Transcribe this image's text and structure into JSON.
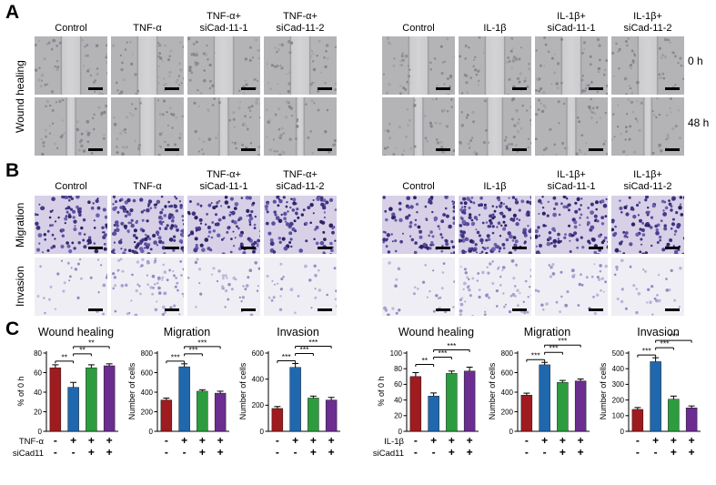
{
  "panels": {
    "A": {
      "letter": "A",
      "side_label": "Wound healing",
      "time_labels": [
        "0 h",
        "48 h"
      ],
      "groups": [
        {
          "columns": [
            [
              "Control"
            ],
            [
              "TNF-α"
            ],
            [
              "TNF-α+",
              "siCad-11-1"
            ],
            [
              "TNF-α+",
              "siCad-11-2"
            ]
          ]
        },
        {
          "columns": [
            [
              "Control"
            ],
            [
              "IL-1β"
            ],
            [
              "IL-1β+",
              "siCad-11-1"
            ],
            [
              "IL-1β+",
              "siCad-11-2"
            ]
          ]
        }
      ]
    },
    "B": {
      "letter": "B",
      "row_labels": [
        "Migration",
        "Invasion"
      ],
      "groups": [
        {
          "columns": [
            [
              "Control"
            ],
            [
              "TNF-α"
            ],
            [
              "TNF-α+",
              "siCad-11-1"
            ],
            [
              "TNF-α+",
              "siCad-11-2"
            ]
          ]
        },
        {
          "columns": [
            [
              "Control"
            ],
            [
              "IL-1β"
            ],
            [
              "IL-1β+",
              "siCad-11-1"
            ],
            [
              "IL-1β+",
              "siCad-11-2"
            ]
          ]
        }
      ]
    },
    "C": {
      "letter": "C"
    }
  },
  "colors": {
    "bars": [
      "#9e1b1f",
      "#2068ae",
      "#2c9c3f",
      "#6b2d90"
    ]
  },
  "chart_data": [
    {
      "type": "bar",
      "title": "Wound healing",
      "ylabel": "% of 0 h",
      "ylim": [
        0,
        80
      ],
      "yticks": [
        0,
        20,
        40,
        60,
        80
      ],
      "values": [
        65,
        45,
        65,
        67
      ],
      "errors": [
        3,
        5,
        3,
        2
      ],
      "significance": [
        {
          "label": "**",
          "from": 0,
          "to": 1
        },
        {
          "label": "**",
          "from": 1,
          "to": 2
        },
        {
          "label": "**",
          "from": 1,
          "to": 3
        }
      ],
      "xrows": [
        {
          "label": "TNF-α",
          "signs": [
            "-",
            "+",
            "+",
            "+"
          ]
        },
        {
          "label": "siCad11",
          "signs": [
            "-",
            "-",
            "+",
            "+"
          ]
        }
      ]
    },
    {
      "type": "bar",
      "title": "Migration",
      "ylabel": "Number of cells",
      "ylim": [
        0,
        800
      ],
      "yticks": [
        0,
        200,
        400,
        600,
        800
      ],
      "values": [
        320,
        660,
        410,
        390
      ],
      "errors": [
        20,
        30,
        15,
        20
      ],
      "significance": [
        {
          "label": "***",
          "from": 0,
          "to": 1
        },
        {
          "label": "***",
          "from": 1,
          "to": 2
        },
        {
          "label": "***",
          "from": 1,
          "to": 3
        }
      ],
      "xrows": [
        {
          "label": "",
          "signs": [
            "-",
            "+",
            "+",
            "+"
          ]
        },
        {
          "label": "",
          "signs": [
            "-",
            "-",
            "+",
            "+"
          ]
        }
      ]
    },
    {
      "type": "bar",
      "title": "Invasion",
      "ylabel": "Number of cells",
      "ylim": [
        0,
        600
      ],
      "yticks": [
        0,
        200,
        400,
        600
      ],
      "values": [
        175,
        490,
        255,
        240
      ],
      "errors": [
        15,
        30,
        15,
        20
      ],
      "significance": [
        {
          "label": "***",
          "from": 0,
          "to": 1
        },
        {
          "label": "***",
          "from": 1,
          "to": 2
        },
        {
          "label": "***",
          "from": 1,
          "to": 3
        }
      ],
      "xrows": [
        {
          "label": "",
          "signs": [
            "-",
            "+",
            "+",
            "+"
          ]
        },
        {
          "label": "",
          "signs": [
            "-",
            "-",
            "+",
            "+"
          ]
        }
      ]
    },
    {
      "type": "bar",
      "title": "Wound healing",
      "ylabel": "% of 0 h",
      "ylim": [
        0,
        100
      ],
      "yticks": [
        0,
        20,
        40,
        60,
        80,
        100
      ],
      "values": [
        70,
        45,
        74,
        77
      ],
      "errors": [
        5,
        4,
        3,
        5
      ],
      "significance": [
        {
          "label": "**",
          "from": 0,
          "to": 1
        },
        {
          "label": "***",
          "from": 1,
          "to": 2
        },
        {
          "label": "***",
          "from": 1,
          "to": 3
        }
      ],
      "xrows": [
        {
          "label": "IL-1β",
          "signs": [
            "-",
            "+",
            "+",
            "+"
          ]
        },
        {
          "label": "siCad11",
          "signs": [
            "-",
            "-",
            "+",
            "+"
          ]
        }
      ]
    },
    {
      "type": "bar",
      "title": "Migration",
      "ylabel": "Number of cells",
      "ylim": [
        0,
        800
      ],
      "yticks": [
        0,
        200,
        400,
        600,
        800
      ],
      "values": [
        370,
        680,
        500,
        515
      ],
      "errors": [
        20,
        25,
        20,
        20
      ],
      "significance": [
        {
          "label": "***",
          "from": 0,
          "to": 1
        },
        {
          "label": "***",
          "from": 1,
          "to": 2
        },
        {
          "label": "***",
          "from": 1,
          "to": 3
        }
      ],
      "xrows": [
        {
          "label": "",
          "signs": [
            "-",
            "+",
            "+",
            "+"
          ]
        },
        {
          "label": "",
          "signs": [
            "-",
            "-",
            "+",
            "+"
          ]
        }
      ]
    },
    {
      "type": "bar",
      "title": "Invasion",
      "ylabel": "Number of cells",
      "ylim": [
        0,
        500
      ],
      "yticks": [
        0,
        100,
        200,
        300,
        400,
        500
      ],
      "values": [
        140,
        445,
        205,
        150
      ],
      "errors": [
        12,
        25,
        20,
        12
      ],
      "significance": [
        {
          "label": "***",
          "from": 0,
          "to": 1
        },
        {
          "label": "***",
          "from": 1,
          "to": 2
        },
        {
          "label": "***",
          "from": 1,
          "to": 3
        }
      ],
      "xrows": [
        {
          "label": "",
          "signs": [
            "-",
            "+",
            "+",
            "+"
          ]
        },
        {
          "label": "",
          "signs": [
            "-",
            "-",
            "+",
            "+"
          ]
        }
      ]
    }
  ]
}
